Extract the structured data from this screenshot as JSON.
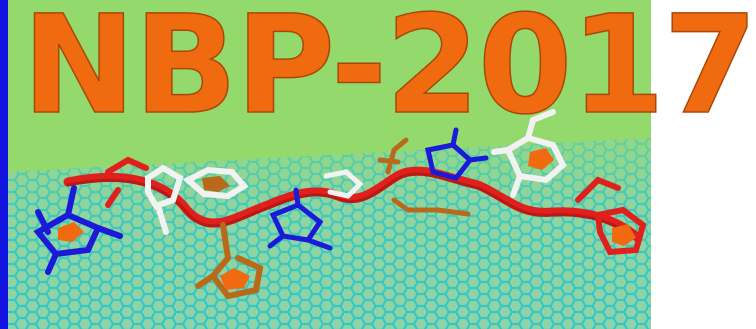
{
  "banner": {
    "title": "NBP-2017"
  },
  "colors": {
    "background": "#94d96c",
    "title_fill": "#f06a10",
    "graphene": "#33c7c9",
    "backbone": "#e0201c",
    "blue_residue": "#1a1ad8",
    "brown_residue": "#b86a1a",
    "white_residue": "#f2f2f2",
    "border": "#1414e0"
  },
  "image": {
    "subject": "peptide-on-graphene-illustration"
  }
}
